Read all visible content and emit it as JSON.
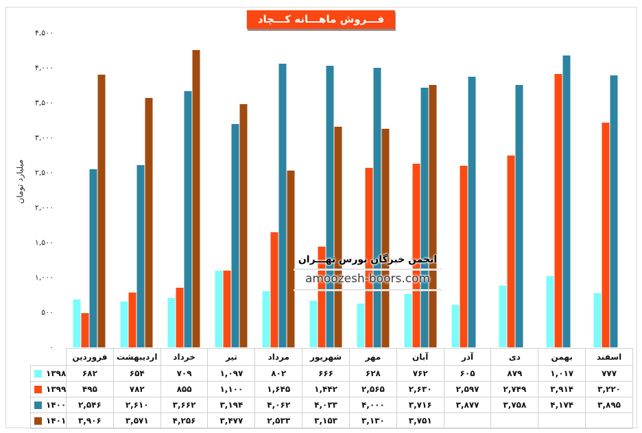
{
  "header": {
    "title": "فـــروش ماهـــانه کـــچاد"
  },
  "watermark": {
    "line1": "انجمن خبرگان بورس تهـــران",
    "line2": "amoozesh-boors.com"
  },
  "colors": {
    "title_bg": "#FB4712",
    "series_1398": "#7DFBFB",
    "series_1399": "#FB4B12",
    "series_1400": "#2C84A1",
    "series_1401": "#A04B10",
    "frame_border": "#D9D9D9",
    "table_border": "#CFCFCF"
  },
  "chart_data": {
    "type": "bar",
    "title": "فـــروش ماهـــانه کـــچاد",
    "xlabel": "",
    "ylabel": "میلیارد تومان",
    "categories": [
      "فروردین",
      "اردیبهشت",
      "خرداد",
      "تیر",
      "مرداد",
      "شهریور",
      "مهر",
      "آبان",
      "آذر",
      "دی",
      "بهمن",
      "اسفند"
    ],
    "series": [
      {
        "name": "۱۳۹۸",
        "color": "#7DFBFB",
        "values": [
          682,
          654,
          709,
          1097,
          802,
          666,
          628,
          762,
          605,
          879,
          1017,
          777
        ]
      },
      {
        "name": "۱۳۹۹",
        "color": "#FB4B12",
        "values": [
          495,
          782,
          855,
          1100,
          1645,
          1442,
          2565,
          2630,
          2597,
          2749,
          3914,
          3220
        ]
      },
      {
        "name": "۱۴۰۰",
        "color": "#2C84A1",
        "values": [
          2546,
          2610,
          3662,
          3194,
          4062,
          4033,
          4000,
          3716,
          3877,
          3758,
          4174,
          3895
        ]
      },
      {
        "name": "۱۴۰۱",
        "color": "#A04B10",
        "values": [
          3906,
          3571,
          4256,
          3477,
          2533,
          3153,
          3130,
          3751,
          null,
          null,
          null,
          null
        ]
      }
    ],
    "ylim": [
      0,
      4500
    ],
    "ytick_step": 500,
    "yticks_display": [
      "۴,۵۰۰",
      "۴,۰۰۰",
      "۳,۵۰۰",
      "۳,۰۰۰",
      "۲,۵۰۰",
      "۲,۰۰۰",
      "۱,۵۰۰",
      "۱,۰۰۰",
      "۵۰۰",
      "۰"
    ],
    "grid": false,
    "legend_position": "table-left-column",
    "number_format": "persian-digits-comma-grouped"
  }
}
